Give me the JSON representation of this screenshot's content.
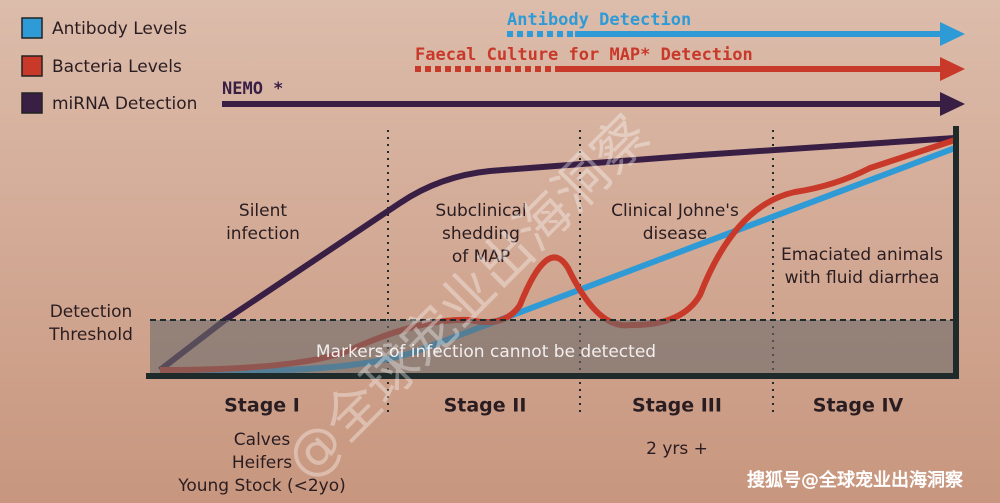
{
  "legend": [
    {
      "label": "Antibody Levels"
    },
    {
      "label": "Bacteria Levels"
    },
    {
      "label": "miRNA Detection"
    }
  ],
  "arrows": [
    {
      "label": "Antibody Detection"
    },
    {
      "label": "Faecal Culture for MAP* Detection"
    },
    {
      "label": "NEMO *"
    }
  ],
  "annotations": [
    {
      "lines": [
        "Silent",
        "infection"
      ]
    },
    {
      "lines": [
        "Subclinical",
        "shedding",
        "of MAP"
      ]
    },
    {
      "lines": [
        "Clinical Johne's",
        "disease"
      ]
    },
    {
      "lines": [
        "Emaciated animals",
        "with fluid diarrhea"
      ]
    },
    {
      "lines": [
        "Detection",
        "Threshold"
      ]
    },
    {
      "lines": [
        "Markers of infection cannot be detected"
      ]
    }
  ],
  "stages": [
    {
      "label": "Stage I",
      "notes": [
        "Calves",
        "Heifers",
        "Young Stock (<2yo)"
      ]
    },
    {
      "label": "Stage II",
      "notes": []
    },
    {
      "label": "Stage III",
      "notes": [
        "2 yrs +"
      ]
    },
    {
      "label": "Stage IV",
      "notes": []
    }
  ],
  "watermarks": [
    "@全球宠业出海洞察",
    "搜狐号@全球宠业出海洞察"
  ]
}
